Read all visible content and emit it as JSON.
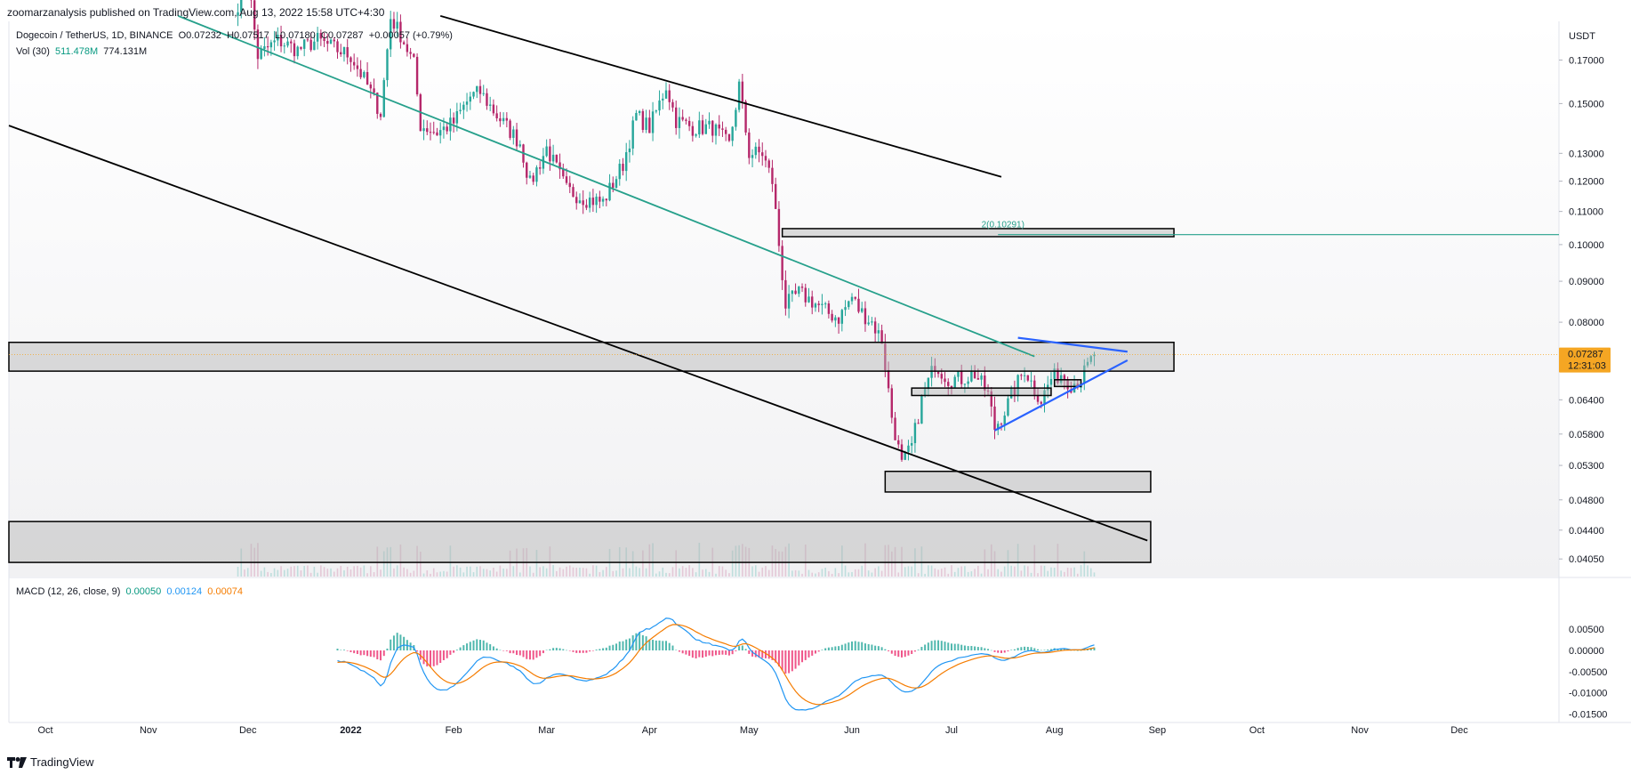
{
  "header": {
    "published": "zoomarzanalysis published on TradingView.com, Aug 13, 2022 15:58 UTC+4:30"
  },
  "legend": {
    "symbol": "Dogecoin / TetherUS, 1D, BINANCE",
    "o": "O0.07232",
    "h": "H0.07517",
    "l": "L0.07180",
    "c": "C0.07287",
    "change": "+0.00057 (+0.79%)",
    "vol_label": "Vol (30)",
    "vol_value": "511.478M",
    "vol_ma": "774.131M"
  },
  "macd_legend": {
    "label": "MACD (12, 26, close, 9)",
    "hist": "0.00050",
    "macd": "0.00124",
    "signal": "0.00074"
  },
  "footer": {
    "brand": "TradingView"
  },
  "price_axis": {
    "currency": "USDT",
    "ticks": [
      "0.17000",
      "0.15000",
      "0.13000",
      "0.12000",
      "0.11000",
      "0.10000",
      "0.09000",
      "0.08000",
      "0.06400",
      "0.05800",
      "0.05300",
      "0.04800",
      "0.04400",
      "0.04050"
    ],
    "current_price": "0.07287",
    "countdown": "12:31:03"
  },
  "macd_axis": {
    "ticks": [
      "0.00500",
      "0.00000",
      "-0.00500",
      "-0.01000",
      "-0.01500"
    ]
  },
  "time_axis": {
    "labels": [
      "Oct",
      "Nov",
      "Dec",
      "2022",
      "Feb",
      "Mar",
      "Apr",
      "May",
      "Jun",
      "Jul",
      "Aug",
      "Sep",
      "Oct",
      "Nov",
      "Dec"
    ]
  },
  "fib_label": "2(0.10291)",
  "colors": {
    "up": "#26a69a",
    "down": "#b5276a",
    "macd_line": "#2196f3",
    "signal_line": "#f57c00",
    "teal_line": "#26a08b",
    "triangle": "#2962ff",
    "price_tag": "#f5a623"
  },
  "chart_data": {
    "type": "candlestick",
    "title": "Dogecoin / TetherUS, 1D, BINANCE",
    "y_scale": "log",
    "y_range": [
      0.0385,
      0.19
    ],
    "x_range": [
      "2021-09-20",
      "2022-12-31"
    ],
    "keyframes_close": [
      [
        "2021-11-28",
        0.2
      ],
      [
        "2021-12-01",
        0.215
      ],
      [
        "2021-12-04",
        0.172
      ],
      [
        "2021-12-10",
        0.18
      ],
      [
        "2021-12-16",
        0.175
      ],
      [
        "2021-12-22",
        0.18
      ],
      [
        "2021-12-28",
        0.175
      ],
      [
        "2022-01-01",
        0.172
      ],
      [
        "2022-01-06",
        0.158
      ],
      [
        "2022-01-10",
        0.146
      ],
      [
        "2022-01-13",
        0.192
      ],
      [
        "2022-01-16",
        0.183
      ],
      [
        "2022-01-20",
        0.168
      ],
      [
        "2022-01-22",
        0.141
      ],
      [
        "2022-01-27",
        0.138
      ],
      [
        "2022-02-01",
        0.142
      ],
      [
        "2022-02-06",
        0.153
      ],
      [
        "2022-02-09",
        0.155
      ],
      [
        "2022-02-14",
        0.145
      ],
      [
        "2022-02-21",
        0.134
      ],
      [
        "2022-02-24",
        0.119
      ],
      [
        "2022-03-01",
        0.132
      ],
      [
        "2022-03-07",
        0.117
      ],
      [
        "2022-03-13",
        0.114
      ],
      [
        "2022-03-18",
        0.113
      ],
      [
        "2022-03-24",
        0.126
      ],
      [
        "2022-03-28",
        0.145
      ],
      [
        "2022-04-01",
        0.14
      ],
      [
        "2022-04-04",
        0.15
      ],
      [
        "2022-04-06",
        0.158
      ],
      [
        "2022-04-09",
        0.143
      ],
      [
        "2022-04-14",
        0.14
      ],
      [
        "2022-04-20",
        0.14
      ],
      [
        "2022-04-25",
        0.133
      ],
      [
        "2022-04-28",
        0.158
      ],
      [
        "2022-05-01",
        0.13
      ],
      [
        "2022-05-05",
        0.13
      ],
      [
        "2022-05-08",
        0.12
      ],
      [
        "2022-05-10",
        0.1
      ],
      [
        "2022-05-12",
        0.084
      ],
      [
        "2022-05-16",
        0.087
      ],
      [
        "2022-05-20",
        0.085
      ],
      [
        "2022-05-25",
        0.082
      ],
      [
        "2022-05-28",
        0.081
      ],
      [
        "2022-06-01",
        0.086
      ],
      [
        "2022-06-03",
        0.083
      ],
      [
        "2022-06-07",
        0.08
      ],
      [
        "2022-06-10",
        0.076
      ],
      [
        "2022-06-13",
        0.061
      ],
      [
        "2022-06-16",
        0.053
      ],
      [
        "2022-06-19",
        0.056
      ],
      [
        "2022-06-22",
        0.064
      ],
      [
        "2022-06-26",
        0.071
      ],
      [
        "2022-06-30",
        0.068
      ],
      [
        "2022-07-04",
        0.068
      ],
      [
        "2022-07-08",
        0.069
      ],
      [
        "2022-07-12",
        0.065
      ],
      [
        "2022-07-14",
        0.059
      ],
      [
        "2022-07-17",
        0.062
      ],
      [
        "2022-07-20",
        0.066
      ],
      [
        "2022-07-23",
        0.07
      ],
      [
        "2022-07-26",
        0.066
      ],
      [
        "2022-07-28",
        0.064
      ],
      [
        "2022-07-31",
        0.068
      ],
      [
        "2022-08-03",
        0.069
      ],
      [
        "2022-08-06",
        0.067
      ],
      [
        "2022-08-09",
        0.068
      ],
      [
        "2022-08-13",
        0.07287
      ]
    ],
    "annotations": [
      {
        "type": "zone",
        "from": "2022-05-11",
        "to": "2022-09-06",
        "y": [
          0.1023,
          0.1047
        ]
      },
      {
        "type": "zone",
        "from": "2021-09-20",
        "to": "2022-09-06",
        "y": [
          0.0695,
          0.0755
        ]
      },
      {
        "type": "zone",
        "from": "2022-06-11",
        "to": "2022-08-30",
        "y": [
          0.0491,
          0.0521
        ]
      },
      {
        "type": "zone",
        "from": "2021-09-20",
        "to": "2022-08-30",
        "y": [
          0.0401,
          0.0451
        ]
      },
      {
        "type": "zone",
        "from": "2022-06-19",
        "to": "2022-07-31",
        "y": [
          0.0648,
          0.0662
        ]
      },
      {
        "type": "zone",
        "from": "2022-08-01",
        "to": "2022-08-09",
        "y": [
          0.0665,
          0.0678
        ]
      },
      {
        "type": "hline",
        "from": "2022-07-15",
        "y": 0.10291
      },
      {
        "type": "trendline",
        "color": "black",
        "from": [
          "2022-01-28",
          0.193
        ],
        "to": [
          "2022-07-16",
          0.1215
        ]
      },
      {
        "type": "trendline",
        "color": "black",
        "from": [
          "2021-09-20",
          0.1408
        ],
        "to": [
          "2022-08-29",
          0.0427
        ]
      },
      {
        "type": "trendline",
        "color": "teal",
        "from": [
          "2021-11-10",
          0.193
        ],
        "to": [
          "2022-07-26",
          0.0725
        ]
      },
      {
        "type": "triangle",
        "points": [
          [
            "2022-07-21",
            0.0765
          ],
          [
            "2022-08-23",
            0.0735
          ],
          [
            "2022-08-23",
            0.0717
          ],
          [
            "2022-07-14",
            0.0586
          ]
        ]
      }
    ]
  }
}
